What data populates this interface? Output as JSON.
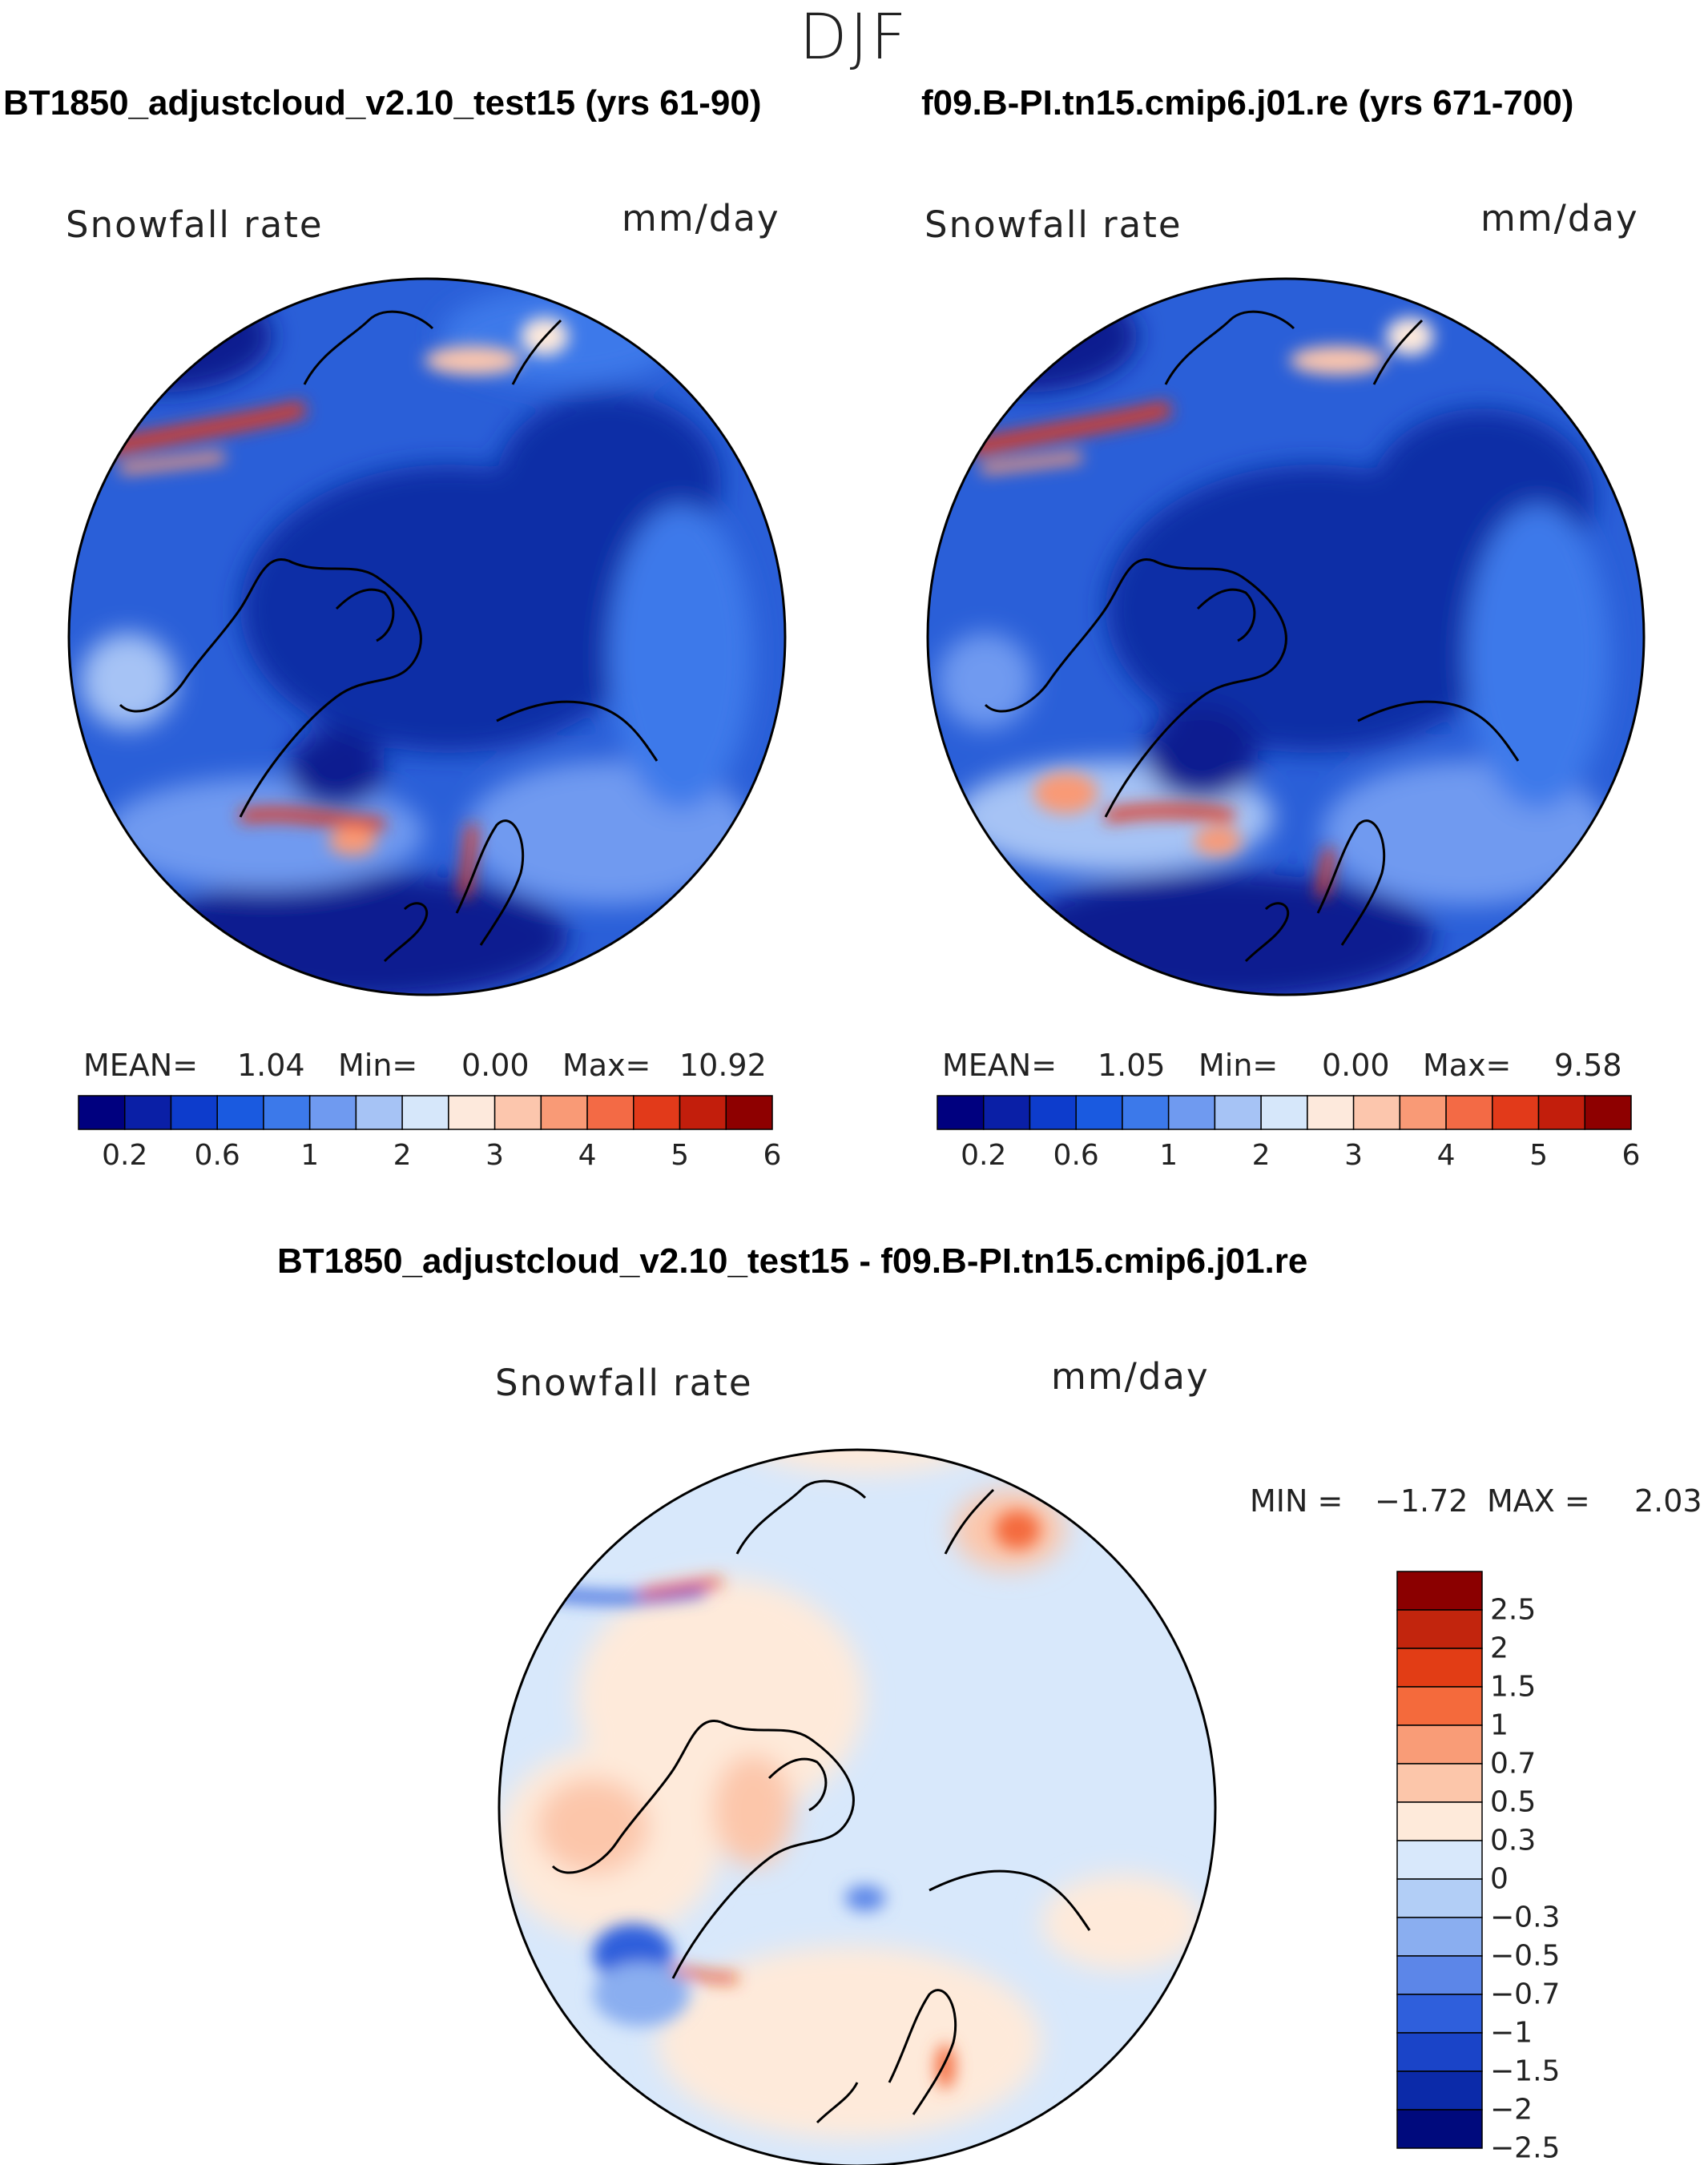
{
  "figure": {
    "season": "DJF",
    "panels": [
      {
        "title": "BT1850_adjustcloud_v2.10_test15 (yrs 61-90)",
        "variable": "Snowfall rate",
        "units": "mm/day",
        "stats": {
          "mean_label": "MEAN=",
          "mean": "1.04",
          "min_label": "Min=",
          "min": "0.00",
          "max_label": "Max=",
          "max": "10.92"
        }
      },
      {
        "title": "f09.B-PI.tn15.cmip6.j01.re (yrs 671-700)",
        "variable": "Snowfall rate",
        "units": "mm/day",
        "stats": {
          "mean_label": "MEAN=",
          "mean": "1.05",
          "min_label": "Min=",
          "min": "0.00",
          "max_label": "Max=",
          "max": "9.58"
        }
      },
      {
        "title": "BT1850_adjustcloud_v2.10_test15 - f09.B-PI.tn15.cmip6.j01.re",
        "variable": "Snowfall rate",
        "units": "mm/day",
        "stats": {
          "min_label": "MIN =",
          "min": "−1.72",
          "max_label": "MAX =",
          "max": "2.03"
        }
      }
    ],
    "abs_colorbar": {
      "colors": [
        "#00007f",
        "#0a1fa6",
        "#0d3ccc",
        "#1a5ae0",
        "#3c79ea",
        "#6f9af0",
        "#a6c3f5",
        "#d6e7fa",
        "#fde9dc",
        "#fcc6ad",
        "#f99a76",
        "#f36a45",
        "#e23a1a",
        "#c21e0c",
        "#8e0000"
      ],
      "tick_labels": [
        "0.2",
        "0.6",
        "1",
        "2",
        "3",
        "4",
        "5",
        "6"
      ]
    },
    "diff_colorbar": {
      "colors": [
        "#8b0000",
        "#c2250d",
        "#e23d15",
        "#f46a3c",
        "#f99c77",
        "#fcc6aa",
        "#feeada",
        "#d8e8fb",
        "#b2cef6",
        "#8aaef0",
        "#5c86e8",
        "#2f5fdc",
        "#1a44c8",
        "#0b2aa9",
        "#000a7d"
      ],
      "tick_labels": [
        "2.5",
        "2",
        "1.5",
        "1",
        "0.7",
        "0.5",
        "0.3",
        "0",
        "−0.3",
        "−0.5",
        "−0.7",
        "−1",
        "−1.5",
        "−2",
        "−2.5"
      ]
    }
  }
}
